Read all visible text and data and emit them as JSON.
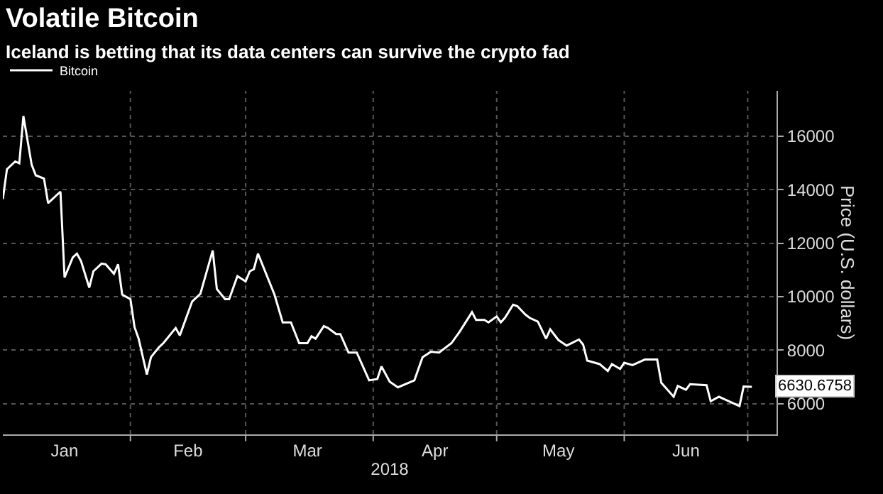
{
  "chart_data": {
    "type": "line",
    "title": "Volatile Bitcoin",
    "subtitle": "Iceland is betting that its data centers can survive the crypto fad",
    "xlabel": "2018",
    "ylabel": "Price (U.S. dollars)",
    "x": [
      "2018-01-01",
      "2018-01-02",
      "2018-01-04",
      "2018-01-05",
      "2018-01-06",
      "2018-01-08",
      "2018-01-09",
      "2018-01-11",
      "2018-01-12",
      "2018-01-15",
      "2018-01-16",
      "2018-01-18",
      "2018-01-19",
      "2018-01-20",
      "2018-01-22",
      "2018-01-23",
      "2018-01-25",
      "2018-01-26",
      "2018-01-28",
      "2018-01-29",
      "2018-01-30",
      "2018-02-01",
      "2018-02-02",
      "2018-02-03",
      "2018-02-05",
      "2018-02-06",
      "2018-02-08",
      "2018-02-09",
      "2018-02-12",
      "2018-02-13",
      "2018-02-16",
      "2018-02-18",
      "2018-02-21",
      "2018-02-22",
      "2018-02-24",
      "2018-02-25",
      "2018-02-27",
      "2018-03-01",
      "2018-03-02",
      "2018-03-03",
      "2018-03-04",
      "2018-03-08",
      "2018-03-10",
      "2018-03-12",
      "2018-03-14",
      "2018-03-16",
      "2018-03-17",
      "2018-03-18",
      "2018-03-20",
      "2018-03-21",
      "2018-03-23",
      "2018-03-24",
      "2018-03-26",
      "2018-03-28",
      "2018-03-31",
      "2018-04-02",
      "2018-04-03",
      "2018-04-05",
      "2018-04-07",
      "2018-04-11",
      "2018-04-13",
      "2018-04-15",
      "2018-04-17",
      "2018-04-20",
      "2018-04-22",
      "2018-04-25",
      "2018-04-26",
      "2018-04-28",
      "2018-04-29",
      "2018-05-01",
      "2018-05-02",
      "2018-05-03",
      "2018-05-05",
      "2018-05-06",
      "2018-05-08",
      "2018-05-09",
      "2018-05-11",
      "2018-05-13",
      "2018-05-14",
      "2018-05-16",
      "2018-05-18",
      "2018-05-21",
      "2018-05-22",
      "2018-05-23",
      "2018-05-26",
      "2018-05-28",
      "2018-05-29",
      "2018-05-31",
      "2018-06-01",
      "2018-06-03",
      "2018-06-06",
      "2018-06-09",
      "2018-06-10",
      "2018-06-13",
      "2018-06-14",
      "2018-06-16",
      "2018-06-17",
      "2018-06-21",
      "2018-06-22",
      "2018-06-24",
      "2018-06-27",
      "2018-06-29",
      "2018-06-30",
      "2018-07-02"
    ],
    "series": [
      {
        "name": "Bitcoin",
        "color": "#ffffff",
        "values": [
          13650,
          14770,
          15060,
          14990,
          16760,
          14940,
          14540,
          14420,
          13500,
          13930,
          10720,
          11470,
          11610,
          11330,
          10340,
          10950,
          11240,
          11210,
          10860,
          11210,
          10080,
          9910,
          8860,
          8430,
          7090,
          7740,
          8120,
          8260,
          8830,
          8550,
          9820,
          10110,
          11730,
          10290,
          9910,
          9910,
          10770,
          10570,
          10950,
          11030,
          11610,
          10080,
          9040,
          9040,
          8260,
          8260,
          8520,
          8430,
          8900,
          8830,
          8600,
          8600,
          7910,
          7910,
          6870,
          6920,
          7390,
          6820,
          6610,
          6870,
          7740,
          7940,
          7910,
          8260,
          8690,
          9420,
          9130,
          9130,
          9040,
          9260,
          9040,
          9210,
          9700,
          9650,
          9330,
          9210,
          9070,
          8430,
          8780,
          8380,
          8170,
          8400,
          8210,
          7610,
          7480,
          7220,
          7480,
          7300,
          7530,
          7440,
          7650,
          7650,
          6780,
          6260,
          6660,
          6520,
          6730,
          6690,
          6090,
          6260,
          6050,
          5910,
          6640,
          6630.6758
        ]
      }
    ],
    "annotations": [
      {
        "text": "6630.6758",
        "x": "2018-07-02",
        "y": 6630.6758
      }
    ],
    "xlim": [
      "2018-01-01",
      "2018-07-08"
    ],
    "xticks": [
      {
        "value": "2018-01-16",
        "label": "Jan"
      },
      {
        "value": "2018-02-01",
        "label": null
      },
      {
        "value": "2018-02-15",
        "label": "Feb"
      },
      {
        "value": "2018-03-01",
        "label": null
      },
      {
        "value": "2018-03-16",
        "label": "Mar"
      },
      {
        "value": "2018-04-01",
        "label": null
      },
      {
        "value": "2018-04-16",
        "label": "Apr"
      },
      {
        "value": "2018-05-01",
        "label": null
      },
      {
        "value": "2018-05-16",
        "label": "May"
      },
      {
        "value": "2018-06-01",
        "label": null
      },
      {
        "value": "2018-06-16",
        "label": "Jun"
      },
      {
        "value": "2018-07-01",
        "label": null
      }
    ],
    "ylim": [
      4850,
      17700
    ],
    "yticks": [
      6000,
      8000,
      10000,
      12000,
      14000,
      16000
    ],
    "grid": true,
    "legend": "top left",
    "line_style": "solid",
    "marker": "none"
  }
}
